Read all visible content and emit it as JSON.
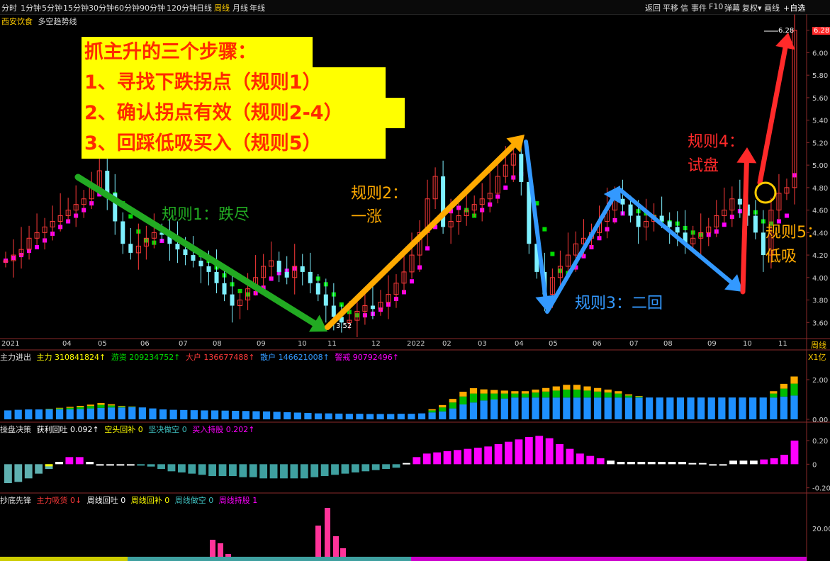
{
  "toolbar": {
    "periods": [
      "分时",
      "1分钟",
      "5分钟",
      "15分钟",
      "30分钟",
      "60分钟",
      "90分钟",
      "120分钟",
      "日线",
      "周线",
      "月线",
      "年线"
    ],
    "active_period": "周线",
    "right_items": [
      "返回",
      "平移",
      "信",
      "事件",
      "F10",
      "弹幕",
      "复权▾",
      "画线",
      "+自选"
    ]
  },
  "chart_header": {
    "stock_name": "西安饮食",
    "indicator": "多空趋势线"
  },
  "steps": {
    "title": "抓主升的三个步骤：",
    "step1": "1、寻找下跌拐点（规则1）",
    "step2": "2、确认拐点有效（规则2-4）",
    "step3": "3、回踩低吸买入（规则5）"
  },
  "annotations": {
    "rule1": "规则1：跌尽",
    "rule2_a": "规则2：",
    "rule2_b": "一涨",
    "rule3": "规则3：二回",
    "rule4_a": "规则4：",
    "rule4_b": "试盘",
    "rule5_a": "规则5：",
    "rule5_b": "低吸"
  },
  "price_labels": {
    "low": "3.52",
    "high": "6.28",
    "high_tag": "6.28"
  },
  "x_axis": {
    "labels": [
      "2021",
      "04",
      "05",
      "06",
      "07",
      "08",
      "09",
      "10",
      "11",
      "12",
      "2022",
      "02",
      "03",
      "04",
      "05",
      "06",
      "07",
      "08",
      "09",
      "10",
      "11"
    ],
    "period_tag": "周线"
  },
  "colors": {
    "up": "#ff3a3a",
    "down": "#7ef0ff",
    "ma_up": "#ff00ff",
    "ma_down": "#00dd00",
    "arrow_green": "#22aa22",
    "arrow_orange": "#ffaa00",
    "arrow_blue": "#3399ff",
    "arrow_red": "#ff2a2a"
  },
  "panels": {
    "main_force": {
      "title": "主力进出",
      "items": [
        {
          "label": "主力 310841824↑",
          "color": "#ffff00"
        },
        {
          "label": "游资 209234752↑",
          "color": "#00dd00"
        },
        {
          "label": "大户 136677488↑",
          "color": "#ff3a3a"
        },
        {
          "label": "散户 146621008↑",
          "color": "#3399ff"
        },
        {
          "label": "警戒 90792496↑",
          "color": "#ff00ff"
        }
      ],
      "unit": "X1亿"
    },
    "decision": {
      "title": "操盘决策",
      "items": [
        {
          "label": "获利回吐 0.092↑",
          "color": "#ffffff"
        },
        {
          "label": "空头回补 0",
          "color": "#ffff00"
        },
        {
          "label": "坚决做空 0",
          "color": "#3fbfbf"
        },
        {
          "label": "买入持股 0.202↑",
          "color": "#ff00ff"
        }
      ]
    },
    "bottom": {
      "title": "抄底先锋",
      "items": [
        {
          "label": "主力吸货 0↓",
          "color": "#ff3a3a"
        },
        {
          "label": "周线回吐 0",
          "color": "#ffffff"
        },
        {
          "label": "周线回补 0",
          "color": "#ffff00"
        },
        {
          "label": "周线做空 0",
          "color": "#3fbfbf"
        },
        {
          "label": "周线持股 1",
          "color": "#ff00ff"
        }
      ]
    }
  },
  "chart_data": [
    {
      "type": "candlestick",
      "title": "西安饮食 周线",
      "y_ticks": [
        "6.20",
        "6.00",
        "5.80",
        "5.60",
        "5.40",
        "5.20",
        "5.00",
        "4.80",
        "4.60",
        "4.40",
        "4.20",
        "4.00",
        "3.80",
        "3.60"
      ],
      "ylim": [
        3.52,
        6.28
      ],
      "extremes": {
        "low": 3.52,
        "high": 6.28
      },
      "series": [
        {
          "name": "price",
          "open_close_approx": [
            4.15,
            4.2,
            4.25,
            4.35,
            4.4,
            4.45,
            4.5,
            4.55,
            4.6,
            4.65,
            4.7,
            4.8,
            4.95,
            4.75,
            4.5,
            4.3,
            4.22,
            4.28,
            4.35,
            4.4,
            4.38,
            4.3,
            4.25,
            4.2,
            4.15,
            4.1,
            4.05,
            3.95,
            3.85,
            3.75,
            3.8,
            3.9,
            4.0,
            4.1,
            4.15,
            4.05,
            4.0,
            4.1,
            4.05,
            3.95,
            3.85,
            3.75,
            3.65,
            3.6,
            3.62,
            3.7,
            3.75,
            3.72,
            3.78,
            3.85,
            3.95,
            4.05,
            4.2,
            4.4,
            4.7,
            4.9,
            4.45,
            4.5,
            4.55,
            4.6,
            4.65,
            4.7,
            4.75,
            4.9,
            5.0,
            5.1,
            4.85,
            4.3,
            4.05,
            3.85,
            4.0,
            4.1,
            4.2,
            4.3,
            4.35,
            4.4,
            4.5,
            4.6,
            4.7,
            4.65,
            4.55,
            4.45,
            4.5,
            4.55,
            4.5,
            4.45,
            4.4,
            4.3,
            4.35,
            4.4,
            4.45,
            4.55,
            4.6,
            4.7,
            4.65,
            4.55,
            4.4,
            4.2,
            4.6,
            4.75,
            4.8,
            6.2
          ]
        }
      ]
    },
    {
      "type": "bar",
      "title": "主力进出",
      "y_ticks": [
        "2.00",
        "0.00"
      ],
      "ylim": [
        0,
        3.0
      ],
      "series": [
        {
          "name": "散户",
          "values": [
            0.45,
            0.48,
            0.5,
            0.5,
            0.5,
            0.5,
            0.5,
            0.52,
            0.55,
            0.58,
            0.6,
            0.6,
            0.62,
            0.6,
            0.55,
            0.5,
            0.48,
            0.47,
            0.46,
            0.45,
            0.45,
            0.44,
            0.43,
            0.42,
            0.41,
            0.4,
            0.38,
            0.36,
            0.34,
            0.32,
            0.3,
            0.3,
            0.29,
            0.28,
            0.28,
            0.27,
            0.27,
            0.27,
            0.28,
            0.28,
            0.3,
            0.35,
            0.4,
            0.55,
            0.75,
            0.85,
            0.95,
            1.0,
            1.05,
            1.1,
            1.1,
            1.1,
            1.1,
            1.1,
            1.1,
            1.1,
            1.1,
            1.1,
            1.1,
            1.1,
            1.1,
            1.1,
            1.1,
            1.1,
            1.1,
            1.1,
            1.1,
            1.1,
            1.1,
            1.1,
            1.1,
            1.1,
            1.1,
            1.1,
            1.1,
            1.15,
            1.2
          ]
        },
        {
          "name": "主力",
          "values": [
            0,
            0,
            0,
            0,
            0.02,
            0.05,
            0.08,
            0.1,
            0.12,
            0.15,
            0.1,
            0.05,
            0.02,
            0,
            0,
            0,
            0,
            0,
            0,
            0,
            0,
            0,
            0,
            0,
            0,
            0,
            0,
            0,
            0,
            0,
            0,
            0,
            0,
            0,
            0,
            0,
            0,
            0,
            0,
            0,
            0,
            0.1,
            0.2,
            0.3,
            0.4,
            0.45,
            0.35,
            0.3,
            0.25,
            0.2,
            0.2,
            0.25,
            0.3,
            0.35,
            0.4,
            0.4,
            0.35,
            0.3,
            0.25,
            0.2,
            0.1,
            0.05,
            0,
            0,
            0,
            0,
            0,
            0,
            0,
            0,
            0,
            0,
            0,
            0,
            0.2,
            0.4,
            0.6
          ]
        }
      ]
    },
    {
      "type": "bar",
      "title": "操盘决策",
      "y_ticks": [
        "0.20",
        "0",
        "-0.20"
      ],
      "ylim": [
        -0.22,
        0.26
      ],
      "series": [
        {
          "name": "value",
          "values": [
            -0.16,
            -0.15,
            -0.12,
            -0.08,
            -0.04,
            0.02,
            0.06,
            0.06,
            0.02,
            0,
            0,
            0,
            0,
            -0.01,
            -0.02,
            -0.04,
            -0.06,
            -0.07,
            -0.08,
            -0.09,
            -0.1,
            -0.1,
            -0.1,
            -0.11,
            -0.11,
            -0.12,
            -0.12,
            -0.12,
            -0.12,
            -0.12,
            -0.11,
            -0.1,
            -0.09,
            -0.08,
            -0.07,
            -0.06,
            -0.05,
            -0.04,
            -0.03,
            0.01,
            0.06,
            0.09,
            0.1,
            0.11,
            0.12,
            0.13,
            0.14,
            0.15,
            0.17,
            0.19,
            0.21,
            0.23,
            0.24,
            0.22,
            0.17,
            0.13,
            0.09,
            0.07,
            0.05,
            0.03,
            0.02,
            0.02,
            0.02,
            0.02,
            0.02,
            0.02,
            0.02,
            0.01,
            0.01,
            0,
            0,
            0.03,
            0.03,
            0.03,
            0.04,
            0.05,
            0.08,
            0.2
          ]
        }
      ]
    },
    {
      "type": "bar",
      "title": "抄底先锋",
      "y_ticks": [
        "20.00"
      ],
      "ylim": [
        0,
        28
      ],
      "series": [
        {
          "name": "value",
          "values": [
            0,
            0,
            0,
            0,
            0,
            0,
            0,
            0,
            0,
            0,
            0,
            0,
            0,
            0,
            0,
            0,
            0,
            0,
            0,
            0,
            0,
            0,
            0,
            0,
            0,
            0,
            0,
            0,
            0,
            0,
            0,
            0,
            0,
            0,
            0,
            0,
            0,
            0,
            0,
            0,
            0,
            0,
            0,
            0,
            0,
            0,
            0,
            0,
            0,
            0,
            0,
            0,
            0,
            0,
            0,
            0,
            0,
            0,
            0,
            0,
            0,
            0,
            0,
            0,
            0,
            0,
            0,
            0,
            0,
            0,
            0,
            0,
            0,
            0,
            0,
            0,
            0,
            0,
            0,
            0,
            0,
            0,
            0,
            0,
            0,
            0,
            0,
            0,
            0,
            0,
            0,
            0,
            0,
            0,
            0,
            0,
            0,
            0,
            0,
            0,
            0,
            0,
            0,
            0,
            0,
            0,
            0,
            0,
            0,
            0,
            0,
            0,
            0,
            0
          ]
        }
      ]
    }
  ]
}
